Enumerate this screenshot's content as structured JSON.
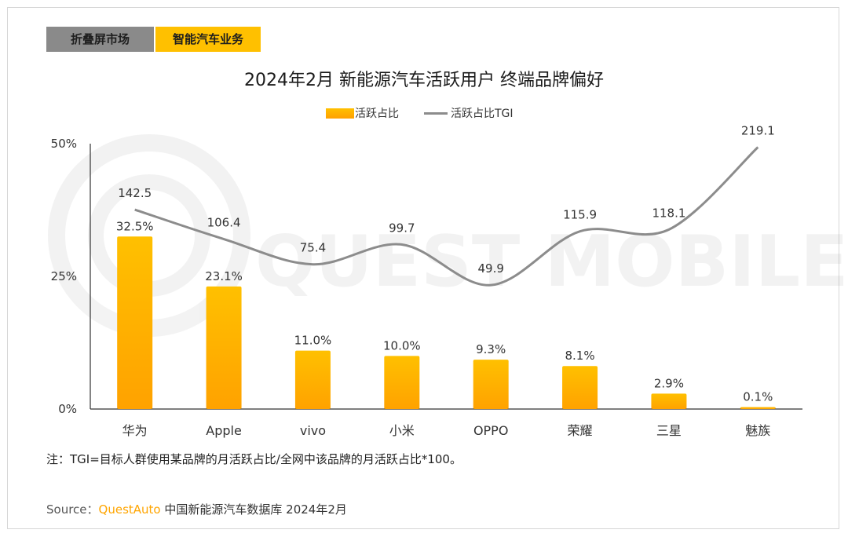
{
  "tabs": [
    {
      "label": "折叠屏市场",
      "active": false
    },
    {
      "label": "智能汽车业务",
      "active": true
    }
  ],
  "watermark": "QUEST MOBILE",
  "colors": {
    "bar_top": "#ffc000",
    "bar_bottom": "#ffa200",
    "line": "#8c8c8c",
    "tab_active": "#ffc000",
    "tab_inactive": "#8a8a8a",
    "source_brand": "#ffa500"
  },
  "chart_data": {
    "type": "bar",
    "title": "2024年2月 新能源汽车活跃用户 终端品牌偏好",
    "categories": [
      "华为",
      "Apple",
      "vivo",
      "小米",
      "OPPO",
      "荣耀",
      "三星",
      "魅族"
    ],
    "series": [
      {
        "name": "活跃占比",
        "kind": "bar",
        "axis": "left",
        "values": [
          32.5,
          23.1,
          11.0,
          10.0,
          9.3,
          8.1,
          2.9,
          0.1
        ],
        "labels": [
          "32.5%",
          "23.1%",
          "11.0%",
          "10.0%",
          "9.3%",
          "8.1%",
          "2.9%",
          "0.1%"
        ]
      },
      {
        "name": "活跃占比TGI",
        "kind": "line",
        "axis": "right",
        "values": [
          142.5,
          106.4,
          75.4,
          99.7,
          49.9,
          115.9,
          118.1,
          219.1
        ],
        "labels": [
          "142.5",
          "106.4",
          "75.4",
          "99.7",
          "49.9",
          "115.9",
          "118.1",
          "219.1"
        ]
      }
    ],
    "y_ticks": [
      "50%",
      "25%",
      "0%"
    ],
    "ylim": [
      0,
      50
    ],
    "legend_position": "top-center",
    "grid": false
  },
  "note": "注：TGI=目标人群使用某品牌的月活跃占比/全网中该品牌的月活跃占比*100。",
  "source": {
    "label": "Source：",
    "brand": "QuestAuto",
    "text": "中国新能源汽车数据库 2024年2月"
  }
}
